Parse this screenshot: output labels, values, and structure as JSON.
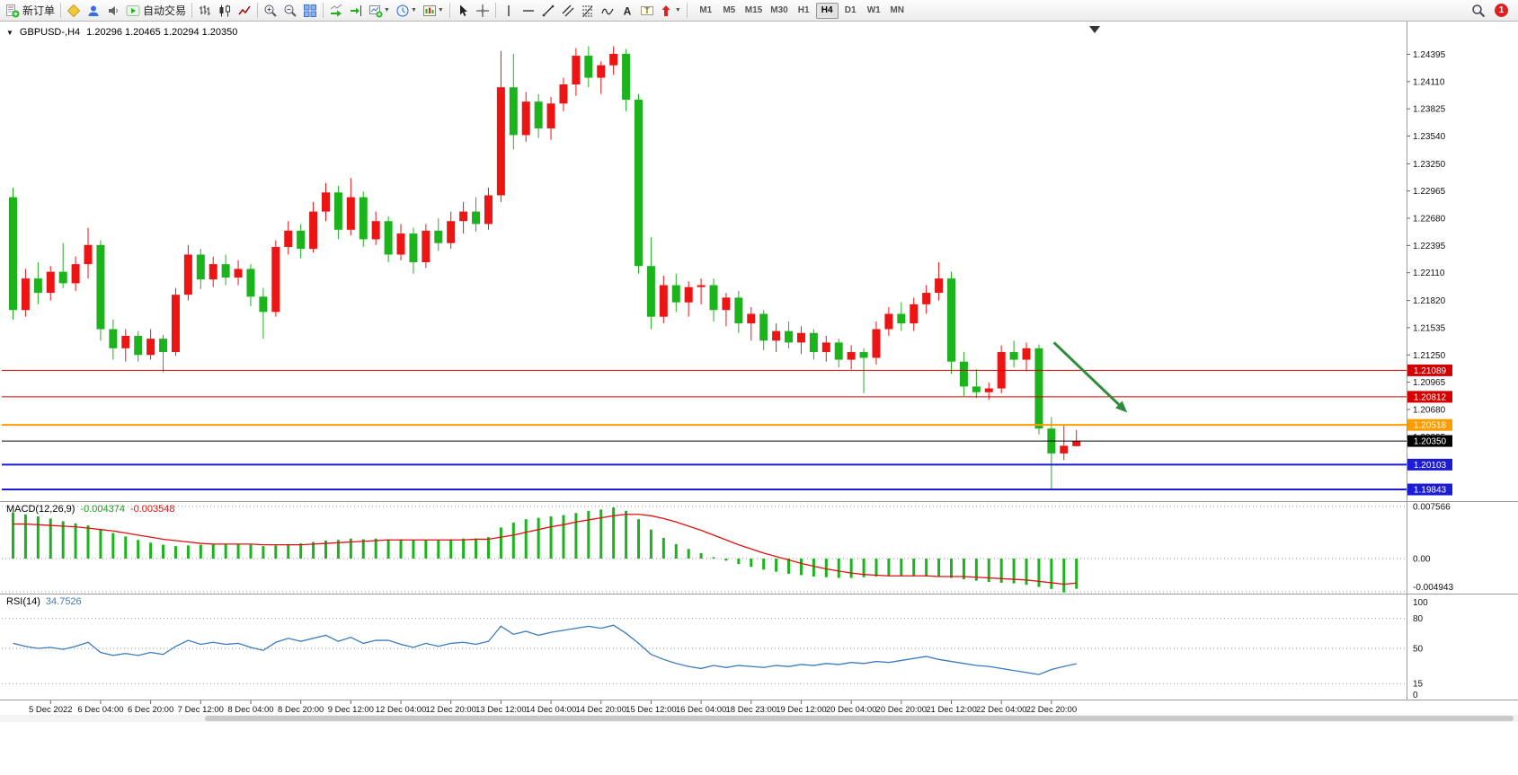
{
  "toolbar": {
    "new_order": "新订单",
    "autotrading": "自动交易",
    "timeframes": [
      "M1",
      "M5",
      "M15",
      "M30",
      "H1",
      "H4",
      "D1",
      "W1",
      "MN"
    ],
    "active_timeframe": "H4",
    "notification_count": "1",
    "icons": [
      "new-order",
      "metaeditor",
      "mql5-community",
      "market-sounds",
      "autotrading",
      "bar-chart",
      "candlestick-chart",
      "line-chart",
      "zoom-in",
      "zoom-out",
      "tile-windows",
      "auto-scroll",
      "chart-shift",
      "new-chart",
      "profiles",
      "templates",
      "cursor",
      "crosshair",
      "vertical-line",
      "horizontal-line",
      "trendline",
      "equidistant-channel",
      "fibonacci",
      "draw-tools",
      "text",
      "text-label",
      "arrows",
      "search",
      "notifications"
    ]
  },
  "chart": {
    "symbol_period": "GBPUSD-,H4",
    "ohlc": "1.20296 1.20465 1.20294 1.20350"
  },
  "chart_data": {
    "type": "candlestick",
    "symbol": "GBPUSD-",
    "period": "H4",
    "current_bar": {
      "open": 1.20296,
      "high": 1.20465,
      "low": 1.20294,
      "close": 1.2035
    },
    "colors": {
      "up": "#ed1414",
      "down": "#1cb41c",
      "macd_hist": "#1cb41c",
      "macd_signal": "#e01010",
      "rsi_line": "#3b7bbf",
      "hline_red": "#d40000",
      "hline_orange": "#ff9c00",
      "hline_blue": "#1c1cd4",
      "current_price": "#000000",
      "arrow": "#2e8b3a"
    },
    "price_axis": {
      "view_max": 1.247,
      "view_min": 1.1974,
      "labels": [
        "1.24395",
        "1.24110",
        "1.23825",
        "1.23540",
        "1.23250",
        "1.22965",
        "1.22680",
        "1.22395",
        "1.22110",
        "1.21820",
        "1.21535",
        "1.21250",
        "1.20965",
        "1.20680",
        "1.20395",
        "1.20110",
        "1.19825"
      ]
    },
    "time_axis": {
      "labels": [
        "5 Dec 2022",
        "6 Dec 04:00",
        "6 Dec 20:00",
        "7 Dec 12:00",
        "8 Dec 04:00",
        "8 Dec 20:00",
        "9 Dec 12:00",
        "12 Dec 04:00",
        "12 Dec 20:00",
        "13 Dec 12:00",
        "14 Dec 04:00",
        "14 Dec 20:00",
        "15 Dec 12:00",
        "16 Dec 04:00",
        "18 Dec 23:00",
        "19 Dec 12:00",
        "20 Dec 04:00",
        "20 Dec 20:00",
        "21 Dec 12:00",
        "22 Dec 04:00",
        "22 Dec 20:00"
      ]
    },
    "candles": [
      [
        1.229,
        1.23,
        1.2162,
        1.2172
      ],
      [
        1.2172,
        1.2215,
        1.2165,
        1.2205
      ],
      [
        1.2205,
        1.2222,
        1.2178,
        1.219
      ],
      [
        1.219,
        1.2218,
        1.2182,
        1.2212
      ],
      [
        1.2212,
        1.2242,
        1.2195,
        1.22
      ],
      [
        1.22,
        1.2228,
        1.2192,
        1.222
      ],
      [
        1.222,
        1.2258,
        1.2205,
        1.224
      ],
      [
        1.224,
        1.2245,
        1.214,
        1.2152
      ],
      [
        1.2152,
        1.2162,
        1.212,
        1.2132
      ],
      [
        1.2132,
        1.2152,
        1.2118,
        1.2145
      ],
      [
        1.2145,
        1.215,
        1.2118,
        1.2125
      ],
      [
        1.2125,
        1.2152,
        1.212,
        1.2142
      ],
      [
        1.2142,
        1.2146,
        1.2107,
        1.2128
      ],
      [
        1.2128,
        1.2195,
        1.2124,
        1.2188
      ],
      [
        1.2188,
        1.224,
        1.2182,
        1.223
      ],
      [
        1.223,
        1.2236,
        1.2194,
        1.2204
      ],
      [
        1.2204,
        1.2228,
        1.2196,
        1.222
      ],
      [
        1.222,
        1.223,
        1.2198,
        1.2206
      ],
      [
        1.2206,
        1.2224,
        1.2198,
        1.2215
      ],
      [
        1.2215,
        1.222,
        1.2176,
        1.2186
      ],
      [
        1.2186,
        1.2195,
        1.2142,
        1.217
      ],
      [
        1.217,
        1.2245,
        1.2165,
        1.2238
      ],
      [
        1.2238,
        1.2265,
        1.223,
        1.2255
      ],
      [
        1.2255,
        1.2262,
        1.2226,
        1.2236
      ],
      [
        1.2236,
        1.2285,
        1.2232,
        1.2275
      ],
      [
        1.2275,
        1.2305,
        1.2265,
        1.2295
      ],
      [
        1.2295,
        1.2302,
        1.2246,
        1.2256
      ],
      [
        1.2256,
        1.231,
        1.225,
        1.229
      ],
      [
        1.229,
        1.2296,
        1.2238,
        1.2246
      ],
      [
        1.2246,
        1.2275,
        1.224,
        1.2265
      ],
      [
        1.2265,
        1.227,
        1.2222,
        1.223
      ],
      [
        1.223,
        1.2262,
        1.2224,
        1.2252
      ],
      [
        1.2252,
        1.2258,
        1.221,
        1.2222
      ],
      [
        1.2222,
        1.2262,
        1.2216,
        1.2255
      ],
      [
        1.2255,
        1.2268,
        1.2234,
        1.2242
      ],
      [
        1.2242,
        1.2275,
        1.2236,
        1.2265
      ],
      [
        1.2265,
        1.2285,
        1.2252,
        1.2275
      ],
      [
        1.2275,
        1.229,
        1.2254,
        1.2262
      ],
      [
        1.2262,
        1.23,
        1.2256,
        1.2292
      ],
      [
        1.2292,
        1.2443,
        1.2285,
        1.2405
      ],
      [
        1.2405,
        1.244,
        1.234,
        1.2355
      ],
      [
        1.2355,
        1.24,
        1.2348,
        1.239
      ],
      [
        1.239,
        1.2398,
        1.2352,
        1.2362
      ],
      [
        1.2362,
        1.2395,
        1.235,
        1.2388
      ],
      [
        1.2388,
        1.2415,
        1.238,
        1.2408
      ],
      [
        1.2408,
        1.2446,
        1.2396,
        1.2438
      ],
      [
        1.2438,
        1.2448,
        1.2405,
        1.2415
      ],
      [
        1.2415,
        1.2432,
        1.2398,
        1.2428
      ],
      [
        1.2428,
        1.2448,
        1.2418,
        1.244
      ],
      [
        1.244,
        1.2445,
        1.238,
        1.2392
      ],
      [
        1.2392,
        1.2398,
        1.221,
        1.2218
      ],
      [
        1.2218,
        1.2248,
        1.2152,
        1.2165
      ],
      [
        1.2165,
        1.2208,
        1.2158,
        1.2198
      ],
      [
        1.2198,
        1.221,
        1.217,
        1.218
      ],
      [
        1.218,
        1.2202,
        1.2165,
        1.2196
      ],
      [
        1.2196,
        1.2205,
        1.2178,
        1.2198
      ],
      [
        1.2198,
        1.2205,
        1.216,
        1.2172
      ],
      [
        1.2172,
        1.219,
        1.2155,
        1.2185
      ],
      [
        1.2185,
        1.2192,
        1.2148,
        1.2158
      ],
      [
        1.2158,
        1.2175,
        1.214,
        1.2168
      ],
      [
        1.2168,
        1.2172,
        1.213,
        1.214
      ],
      [
        1.214,
        1.2158,
        1.2128,
        1.215
      ],
      [
        1.215,
        1.216,
        1.2132,
        1.2138
      ],
      [
        1.2138,
        1.2155,
        1.2126,
        1.2148
      ],
      [
        1.2148,
        1.2152,
        1.212,
        1.2128
      ],
      [
        1.2128,
        1.2145,
        1.2118,
        1.2138
      ],
      [
        1.2138,
        1.2142,
        1.2112,
        1.212
      ],
      [
        1.212,
        1.2135,
        1.211,
        1.2128
      ],
      [
        1.2128,
        1.2132,
        1.2085,
        1.2122
      ],
      [
        1.2122,
        1.216,
        1.2115,
        1.2152
      ],
      [
        1.2152,
        1.2175,
        1.2145,
        1.2168
      ],
      [
        1.2168,
        1.218,
        1.215,
        1.2158
      ],
      [
        1.2158,
        1.2185,
        1.215,
        1.2178
      ],
      [
        1.2178,
        1.2198,
        1.2168,
        1.219
      ],
      [
        1.219,
        1.2222,
        1.2182,
        1.2205
      ],
      [
        1.2205,
        1.2212,
        1.2105,
        1.2118
      ],
      [
        1.2118,
        1.2128,
        1.2082,
        1.2092
      ],
      [
        1.2092,
        1.211,
        1.208,
        1.2086
      ],
      [
        1.2086,
        1.2096,
        1.2078,
        1.209
      ],
      [
        1.209,
        1.2135,
        1.2085,
        1.2128
      ],
      [
        1.2128,
        1.214,
        1.2112,
        1.212
      ],
      [
        1.212,
        1.2138,
        1.2108,
        1.2132
      ],
      [
        1.2132,
        1.2136,
        1.2042,
        1.2048
      ],
      [
        1.2048,
        1.206,
        1.1984,
        1.2022
      ],
      [
        1.2022,
        1.2052,
        1.2015,
        1.203
      ],
      [
        1.20296,
        1.20465,
        1.20294,
        1.2035
      ]
    ],
    "hlines": [
      {
        "price": 1.21089,
        "label": "1.21089",
        "color_key": "hline_red",
        "width": 1
      },
      {
        "price": 1.20812,
        "label": "1.20812",
        "color_key": "hline_red",
        "width": 1
      },
      {
        "price": 1.20518,
        "label": "1.20518",
        "color_key": "hline_orange",
        "width": 2
      },
      {
        "price": 1.2035,
        "label": "1.20350",
        "color_key": "current_price",
        "width": 1
      },
      {
        "price": 1.20103,
        "label": "1.20103",
        "color_key": "hline_blue",
        "width": 2
      },
      {
        "price": 1.19843,
        "label": "1.19843",
        "color_key": "hline_blue",
        "width": 2
      }
    ],
    "arrow_object": {
      "from_bar": 83.2,
      "from_price": 1.2138,
      "to_bar": 88.8,
      "to_price": 1.2068
    },
    "indicators": {
      "macd": {
        "name": "MACD(12,26,9)",
        "value_main": "-0.004374",
        "value_signal": "-0.003548",
        "scale_labels": [
          "0.007566",
          "0.00",
          "-0.004943"
        ],
        "scale_values": [
          0.007566,
          0,
          -0.004943
        ],
        "view_max": 0.0078,
        "view_min": -0.00481,
        "histogram": [
          0.0067,
          0.0064,
          0.0061,
          0.0058,
          0.0054,
          0.0051,
          0.0048,
          0.0043,
          0.0037,
          0.0032,
          0.0027,
          0.0023,
          0.002,
          0.0018,
          0.0019,
          0.002,
          0.0021,
          0.0021,
          0.0021,
          0.002,
          0.0018,
          0.0019,
          0.0021,
          0.0022,
          0.0024,
          0.0026,
          0.0027,
          0.0029,
          0.0028,
          0.0029,
          0.0028,
          0.0028,
          0.0027,
          0.0027,
          0.0027,
          0.0028,
          0.0029,
          0.0029,
          0.0031,
          0.0045,
          0.0052,
          0.0057,
          0.0059,
          0.0061,
          0.0063,
          0.0066,
          0.0069,
          0.0071,
          0.0074,
          0.0069,
          0.0057,
          0.0042,
          0.003,
          0.0021,
          0.0014,
          0.0008,
          0.0002,
          -0.0003,
          -0.0008,
          -0.0012,
          -0.0016,
          -0.0019,
          -0.0022,
          -0.0024,
          -0.0026,
          -0.0027,
          -0.0028,
          -0.0028,
          -0.0027,
          -0.0026,
          -0.0025,
          -0.0025,
          -0.0025,
          -0.0026,
          -0.0026,
          -0.0028,
          -0.003,
          -0.0032,
          -0.0034,
          -0.0035,
          -0.0036,
          -0.0038,
          -0.0041,
          -0.0044,
          -0.0049,
          -0.004374
        ],
        "signal": [
          0.005,
          0.005,
          0.0049,
          0.0048,
          0.0047,
          0.0046,
          0.0044,
          0.0042,
          0.004,
          0.0037,
          0.0034,
          0.0031,
          0.0028,
          0.0026,
          0.0024,
          0.0022,
          0.0021,
          0.0021,
          0.0021,
          0.0021,
          0.002,
          0.002,
          0.002,
          0.002,
          0.0021,
          0.0022,
          0.0023,
          0.0024,
          0.0025,
          0.0026,
          0.0027,
          0.0027,
          0.0027,
          0.0027,
          0.0027,
          0.0027,
          0.0027,
          0.0028,
          0.0028,
          0.0031,
          0.0034,
          0.0038,
          0.0042,
          0.0046,
          0.0049,
          0.0053,
          0.0056,
          0.0059,
          0.0062,
          0.0064,
          0.0064,
          0.0062,
          0.0058,
          0.0053,
          0.0047,
          0.0041,
          0.0034,
          0.0027,
          0.002,
          0.0014,
          0.0008,
          0.0003,
          -0.0002,
          -0.0007,
          -0.0011,
          -0.0015,
          -0.0018,
          -0.0021,
          -0.0023,
          -0.0024,
          -0.0025,
          -0.0025,
          -0.0025,
          -0.0025,
          -0.0026,
          -0.0026,
          -0.0026,
          -0.0027,
          -0.0028,
          -0.0029,
          -0.003,
          -0.0031,
          -0.0033,
          -0.0035,
          -0.0037,
          -0.003548
        ]
      },
      "rsi": {
        "name": "RSI(14)",
        "value": "34.7526",
        "scale_labels": [
          "100",
          "80",
          "50",
          "15",
          "0"
        ],
        "scale_values": [
          100,
          80,
          50,
          15,
          0
        ],
        "level_lines": [
          80,
          50,
          15
        ],
        "view_max": 100,
        "view_min": 0,
        "values": [
          55,
          52,
          50,
          51,
          49,
          52,
          56,
          46,
          43,
          45,
          43,
          46,
          44,
          52,
          58,
          54,
          56,
          54,
          55,
          51,
          48,
          56,
          60,
          57,
          60,
          63,
          57,
          61,
          55,
          58,
          58,
          54,
          51,
          55,
          52,
          55,
          56,
          54,
          57,
          72,
          64,
          67,
          63,
          66,
          68,
          70,
          72,
          70,
          73,
          65,
          55,
          44,
          39,
          35,
          32,
          30,
          33,
          31,
          33,
          32,
          31,
          33,
          32,
          34,
          33,
          35,
          34,
          36,
          35,
          37,
          36,
          38,
          40,
          42,
          39,
          37,
          35,
          33,
          32,
          30,
          28,
          26,
          24,
          29,
          32,
          34.75
        ]
      }
    }
  }
}
